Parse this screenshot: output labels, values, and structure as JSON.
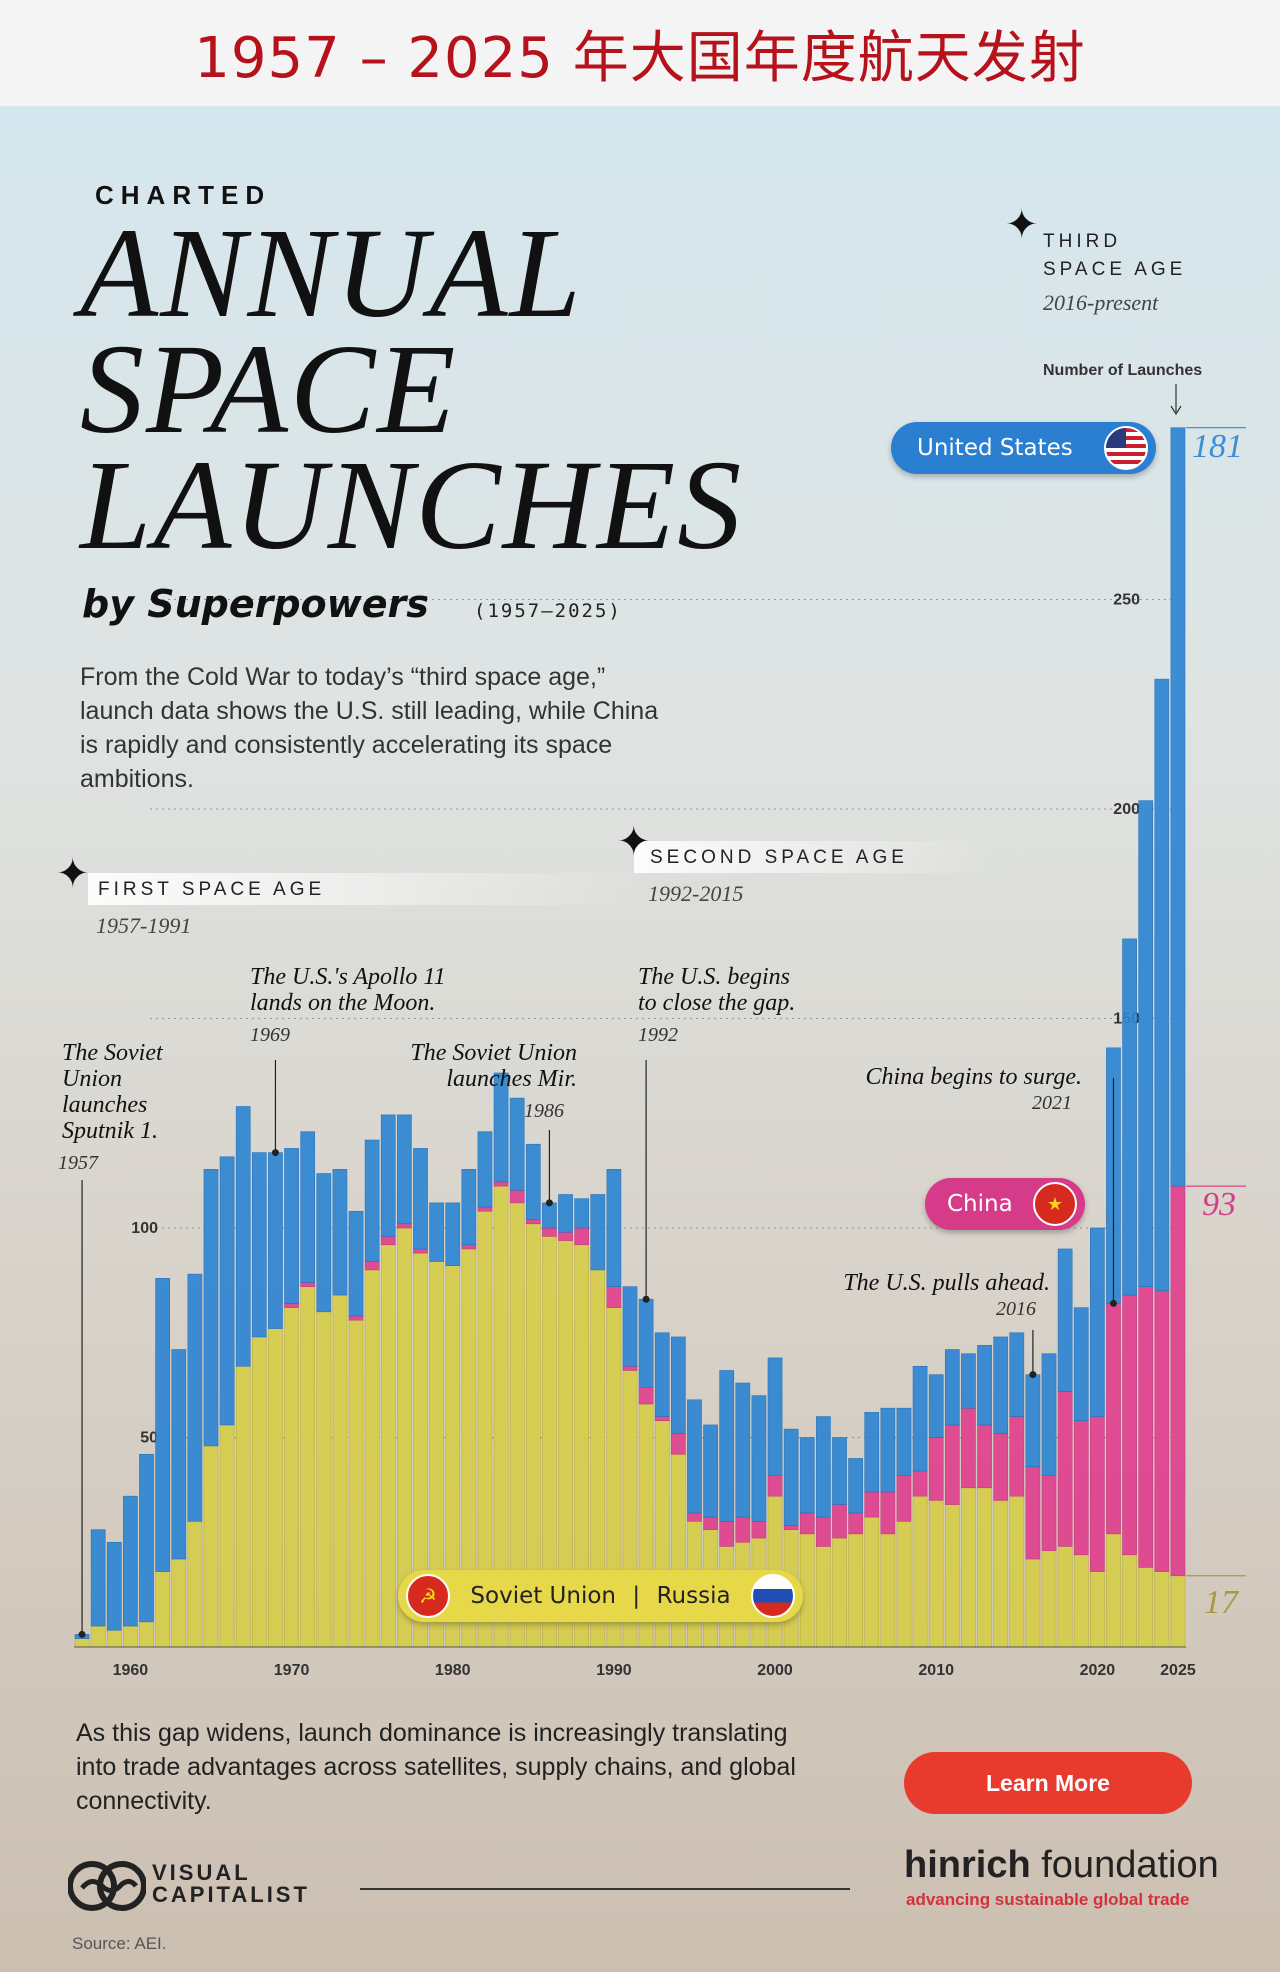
{
  "banner": {
    "title": "1957 – 2025 年大国年度航天发射"
  },
  "header": {
    "kicker": "CHARTED",
    "title_lines": [
      "ANNUAL",
      "SPACE",
      "LAUNCHES"
    ],
    "subtitle": "by Superpowers",
    "years": "(1957–2025)",
    "intro": "From the Cold War to today’s “third space age,” launch data shows the U.S. still leading, while China is rapidly and consistently accelerating its space ambitions."
  },
  "ages": {
    "first": {
      "label": "FIRST SPACE AGE",
      "years": "1957-1991"
    },
    "second": {
      "label": "SECOND SPACE AGE",
      "years": "1992-2015"
    },
    "third": {
      "label_line1": "THIRD",
      "label_line2": "SPACE AGE",
      "years": "2016-present"
    }
  },
  "annotations": {
    "sputnik": {
      "text": "The Soviet Union launches Sputnik 1.",
      "year": "1957"
    },
    "apollo": {
      "text": "The U.S.'s Apollo 11 lands on the Moon.",
      "year": "1969"
    },
    "mir": {
      "text": "The Soviet Union launches Mir.",
      "year": "1986"
    },
    "close_gap": {
      "text": "The U.S. begins to close the gap.",
      "year": "1992"
    },
    "china_surge": {
      "text": "China begins to surge.",
      "year": "2021"
    },
    "us_ahead": {
      "text": "The U.S. pulls ahead.",
      "year": "2016"
    }
  },
  "legend": {
    "us": "United States",
    "china": "China",
    "soviet": "Soviet Union",
    "russia": "Russia",
    "separator": "|"
  },
  "end_values": {
    "us": "181",
    "china": "93",
    "russia": "17"
  },
  "axis_caption": "Number of Launches",
  "colors": {
    "us": "#2f86d3",
    "china": "#e0418e",
    "russia": "#d6cd4a",
    "accent_red": "#b5121b"
  },
  "chart_data": {
    "type": "bar",
    "stacked": true,
    "x": [
      1957,
      1958,
      1959,
      1960,
      1961,
      1962,
      1963,
      1964,
      1965,
      1966,
      1967,
      1968,
      1969,
      1970,
      1971,
      1972,
      1973,
      1974,
      1975,
      1976,
      1977,
      1978,
      1979,
      1980,
      1981,
      1982,
      1983,
      1984,
      1985,
      1986,
      1987,
      1988,
      1989,
      1990,
      1991,
      1992,
      1993,
      1994,
      1995,
      1996,
      1997,
      1998,
      1999,
      2000,
      2001,
      2002,
      2003,
      2004,
      2005,
      2006,
      2007,
      2008,
      2009,
      2010,
      2011,
      2012,
      2013,
      2014,
      2015,
      2016,
      2017,
      2018,
      2019,
      2020,
      2021,
      2022,
      2023,
      2024,
      2025
    ],
    "series": [
      {
        "name": "Soviet Union | Russia",
        "values": [
          2,
          5,
          4,
          5,
          6,
          18,
          21,
          30,
          48,
          53,
          67,
          74,
          76,
          81,
          86,
          80,
          84,
          78,
          90,
          96,
          100,
          94,
          92,
          91,
          95,
          104,
          110,
          106,
          101,
          98,
          97,
          96,
          90,
          81,
          66,
          58,
          54,
          46,
          30,
          28,
          24,
          25,
          26,
          36,
          28,
          27,
          24,
          26,
          27,
          31,
          27,
          30,
          36,
          35,
          34,
          38,
          38,
          35,
          36,
          21,
          23,
          24,
          22,
          18,
          27,
          22,
          19,
          18,
          17
        ]
      },
      {
        "name": "China",
        "values": [
          0,
          0,
          0,
          0,
          0,
          0,
          0,
          0,
          0,
          0,
          0,
          0,
          0,
          1,
          1,
          0,
          0,
          1,
          2,
          2,
          1,
          1,
          0,
          0,
          1,
          1,
          1,
          3,
          1,
          2,
          2,
          4,
          0,
          5,
          1,
          4,
          1,
          5,
          2,
          3,
          6,
          6,
          4,
          5,
          1,
          5,
          7,
          8,
          5,
          6,
          10,
          11,
          6,
          15,
          19,
          19,
          15,
          16,
          19,
          22,
          18,
          37,
          32,
          37,
          55,
          62,
          67,
          67,
          93
        ]
      },
      {
        "name": "United States",
        "values": [
          1,
          23,
          21,
          31,
          40,
          70,
          50,
          59,
          66,
          64,
          62,
          44,
          42,
          37,
          36,
          33,
          30,
          25,
          29,
          29,
          26,
          24,
          14,
          15,
          18,
          18,
          26,
          22,
          18,
          6,
          9,
          7,
          18,
          28,
          19,
          21,
          20,
          23,
          27,
          22,
          36,
          32,
          30,
          28,
          23,
          18,
          24,
          16,
          13,
          19,
          20,
          16,
          25,
          15,
          18,
          13,
          19,
          23,
          20,
          22,
          29,
          34,
          27,
          45,
          61,
          85,
          116,
          146,
          181
        ]
      }
    ],
    "ylim": [
      0,
      290
    ],
    "yticks": [
      50,
      100,
      150,
      200,
      250
    ],
    "xticks": [
      1960,
      1970,
      1980,
      1990,
      2000,
      2010,
      2020,
      2025
    ],
    "ylabel": "Number of Launches"
  },
  "footer": {
    "text": "As this gap widens, launch dominance is increasingly translating into trade advantages across satellites, supply chains, and global connectivity.",
    "learn_more": "Learn More",
    "vc_line1": "VISUAL",
    "vc_line2": "CAPITALIST",
    "hinrich_bold": "hinrich",
    "hinrich_rest": " foundation",
    "hinrich_tagline": "advancing sustainable global trade",
    "source": "Source: AEI."
  }
}
